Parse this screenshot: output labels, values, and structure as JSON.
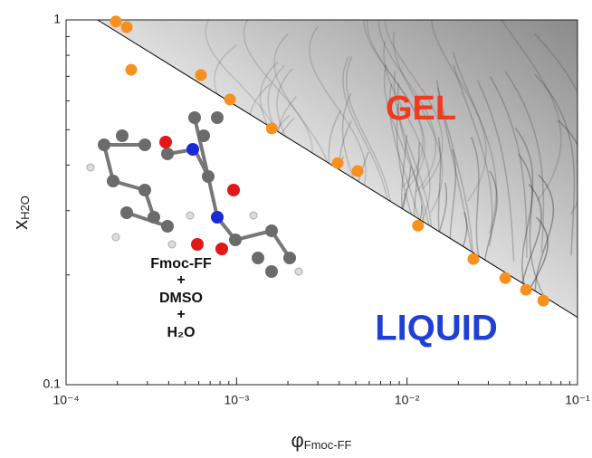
{
  "chart_data": {
    "type": "scatter",
    "x_label": {
      "symbol": "φ",
      "subscript": "Fmoc-FF"
    },
    "y_label": {
      "symbol": "x",
      "subscript": "H2O"
    },
    "xlog": true,
    "ylog": true,
    "xlim": [
      0.0001,
      0.1
    ],
    "ylim": [
      0.1,
      1
    ],
    "xticks": [
      {
        "value": 0.0001,
        "label": "10⁻⁴"
      },
      {
        "value": 0.001,
        "label": "10⁻³"
      },
      {
        "value": 0.01,
        "label": "10⁻²"
      },
      {
        "value": 0.1,
        "label": "10⁻¹"
      }
    ],
    "yticks": [
      0.1,
      1
    ],
    "minor_ticks": true,
    "x": [
      0.000196,
      0.000227,
      0.000241,
      0.000618,
      0.000915,
      0.00161,
      0.00392,
      0.00513,
      0.0116,
      0.0245,
      0.0377,
      0.0499,
      0.063
    ],
    "values": [
      0.99,
      0.955,
      0.73,
      0.706,
      0.605,
      0.504,
      0.405,
      0.385,
      0.273,
      0.221,
      0.196,
      0.182,
      0.17
    ],
    "color": "#f7901e",
    "boundary": {
      "x": [
        0.000153,
        0.1
      ],
      "y": [
        1,
        0.153
      ],
      "color": "#000000"
    },
    "annotations": {
      "gel": "GEL",
      "liquid": "LIQUID",
      "system": [
        "Fmoc-FF",
        "+",
        "DMSO",
        "+",
        "H₂O"
      ]
    }
  }
}
